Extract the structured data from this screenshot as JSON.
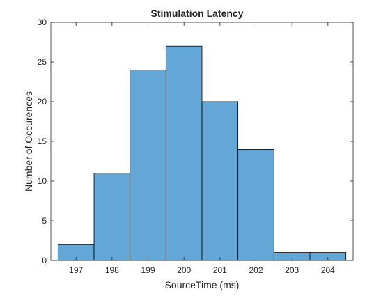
{
  "chart_data": {
    "type": "bar",
    "title": "Stimulation Latency",
    "xlabel": "SourceTime (ms)",
    "ylabel": "Number of Occurences",
    "categories": [
      "197",
      "198",
      "199",
      "200",
      "201",
      "202",
      "203",
      "204"
    ],
    "bin_edges": [
      196.5,
      197.5,
      198.5,
      199.5,
      200.5,
      201.5,
      202.5,
      203.5,
      204.5
    ],
    "values": [
      2,
      11,
      24,
      27,
      20,
      14,
      1,
      1
    ],
    "xlim": [
      196.3,
      204.7
    ],
    "ylim": [
      0,
      30
    ],
    "yticks": [
      0,
      5,
      10,
      15,
      20,
      25,
      30
    ],
    "grid": false,
    "bar_color": "#63a7d6",
    "bar_edge_color": "#000000",
    "axis_color": "#262626"
  }
}
